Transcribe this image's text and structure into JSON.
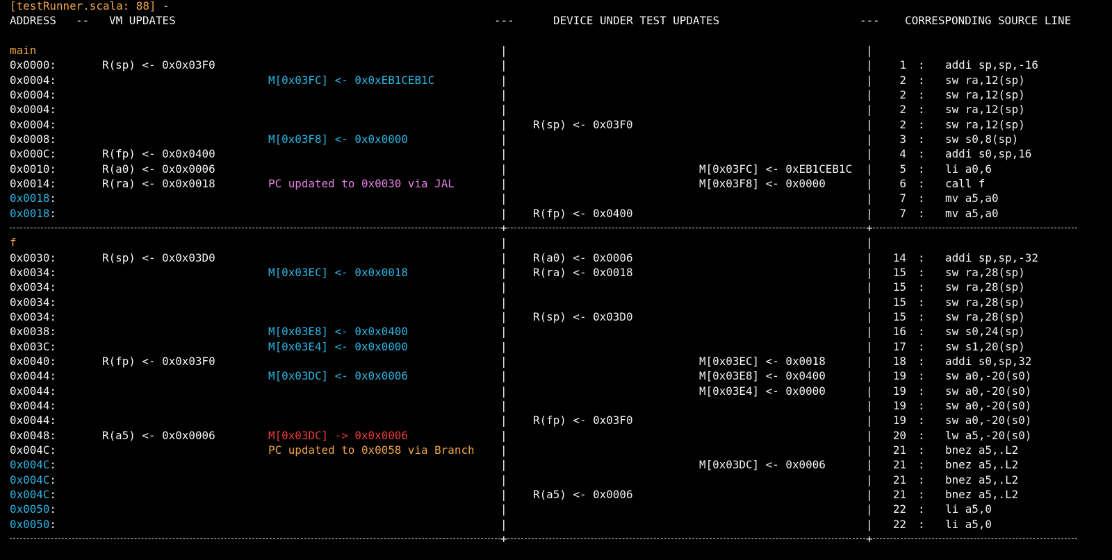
{
  "title": "[testRunner.scala: 88] -",
  "header": {
    "address": "ADDRESS",
    "sep1": "--",
    "vm": "VM UPDATES",
    "sep2": "---",
    "dut": "DEVICE UNDER TEST UPDATES",
    "sep3": "---",
    "source": "CORRESPONDING SOURCE LINE"
  },
  "colors": {
    "label": "#f0a54a",
    "memory_write": "#2bb6e6",
    "jal": "#e87fe6",
    "memory_read": "#f03a3a",
    "branch": "#f0a54a",
    "repeat_address": "#2bb6e6"
  },
  "sections": [
    {
      "label": "main",
      "rows": [
        {
          "addr": "0x0000",
          "vm_reg": "R(sp) <- 0x0x03F0",
          "line": "1",
          "src": "addi sp,sp,-16"
        },
        {
          "addr": "0x0004",
          "vm_mem": "M[0x03FC] <- 0x0xEB1CEB1C",
          "vm_mem_color": "cyan",
          "line": "2",
          "src": "sw ra,12(sp)"
        },
        {
          "addr": "0x0004",
          "line": "2",
          "src": "sw ra,12(sp)"
        },
        {
          "addr": "0x0004",
          "line": "2",
          "src": "sw ra,12(sp)"
        },
        {
          "addr": "0x0004",
          "dut_reg": "R(sp) <- 0x03F0",
          "line": "2",
          "src": "sw ra,12(sp)"
        },
        {
          "addr": "0x0008",
          "vm_mem": "M[0x03F8] <- 0x0x0000",
          "vm_mem_color": "cyan",
          "line": "3",
          "src": "sw s0,8(sp)"
        },
        {
          "addr": "0x000C",
          "vm_reg": "R(fp) <- 0x0x0400",
          "line": "4",
          "src": "addi s0,sp,16"
        },
        {
          "addr": "0x0010",
          "vm_reg": "R(a0) <- 0x0x0006",
          "dut_mem": "M[0x03FC] <- 0xEB1CEB1C",
          "line": "5",
          "src": "li a0,6"
        },
        {
          "addr": "0x0014",
          "vm_reg": "R(ra) <- 0x0x0018",
          "vm_mem": "PC updated to 0x0030 via JAL",
          "vm_mem_color": "magenta",
          "dut_mem": "M[0x03F8] <- 0x0000",
          "line": "6",
          "src": "call f"
        },
        {
          "addr": "0x0018",
          "addr_hl": true,
          "line": "7",
          "src": "mv a5,a0"
        },
        {
          "addr": "0x0018",
          "addr_hl": true,
          "dut_reg": "R(fp) <- 0x0400",
          "line": "7",
          "src": "mv a5,a0"
        }
      ]
    },
    {
      "label": "f",
      "rows": [
        {
          "addr": "0x0030",
          "vm_reg": "R(sp) <- 0x0x03D0",
          "dut_reg": "R(a0) <- 0x0006",
          "line": "14",
          "src": "addi sp,sp,-32"
        },
        {
          "addr": "0x0034",
          "vm_mem": "M[0x03EC] <- 0x0x0018",
          "vm_mem_color": "cyan",
          "dut_reg": "R(ra) <- 0x0018",
          "line": "15",
          "src": "sw ra,28(sp)"
        },
        {
          "addr": "0x0034",
          "line": "15",
          "src": "sw ra,28(sp)"
        },
        {
          "addr": "0x0034",
          "line": "15",
          "src": "sw ra,28(sp)"
        },
        {
          "addr": "0x0034",
          "dut_reg": "R(sp) <- 0x03D0",
          "line": "15",
          "src": "sw ra,28(sp)"
        },
        {
          "addr": "0x0038",
          "vm_mem": "M[0x03E8] <- 0x0x0400",
          "vm_mem_color": "cyan",
          "line": "16",
          "src": "sw s0,24(sp)"
        },
        {
          "addr": "0x003C",
          "vm_mem": "M[0x03E4] <- 0x0x0000",
          "vm_mem_color": "cyan",
          "line": "17",
          "src": "sw s1,20(sp)"
        },
        {
          "addr": "0x0040",
          "vm_reg": "R(fp) <- 0x0x03F0",
          "dut_mem": "M[0x03EC] <- 0x0018",
          "line": "18",
          "src": "addi s0,sp,32"
        },
        {
          "addr": "0x0044",
          "vm_mem": "M[0x03DC] <- 0x0x0006",
          "vm_mem_color": "cyan",
          "dut_mem": "M[0x03E8] <- 0x0400",
          "line": "19",
          "src": "sw a0,-20(s0)"
        },
        {
          "addr": "0x0044",
          "dut_mem": "M[0x03E4] <- 0x0000",
          "line": "19",
          "src": "sw a0,-20(s0)"
        },
        {
          "addr": "0x0044",
          "line": "19",
          "src": "sw a0,-20(s0)"
        },
        {
          "addr": "0x0044",
          "dut_reg": "R(fp) <- 0x03F0",
          "line": "19",
          "src": "sw a0,-20(s0)"
        },
        {
          "addr": "0x0048",
          "vm_reg": "R(a5) <- 0x0x0006",
          "vm_mem": "M[0x03DC] -> 0x0x0006",
          "vm_mem_color": "red",
          "line": "20",
          "src": "lw a5,-20(s0)"
        },
        {
          "addr": "0x004C",
          "vm_mem": "PC updated to 0x0058 via Branch",
          "vm_mem_color": "orange",
          "line": "21",
          "src": "bnez a5,.L2"
        },
        {
          "addr": "0x004C",
          "addr_hl": true,
          "dut_mem": "M[0x03DC] <- 0x0006",
          "line": "21",
          "src": "bnez a5,.L2"
        },
        {
          "addr": "0x004C",
          "addr_hl": true,
          "line": "21",
          "src": "bnez a5,.L2"
        },
        {
          "addr": "0x004C",
          "addr_hl": true,
          "dut_reg": "R(a5) <- 0x0006",
          "line": "21",
          "src": "bnez a5,.L2"
        },
        {
          "addr": "0x0050",
          "addr_hl": true,
          "line": "22",
          "src": "li a5,0"
        },
        {
          "addr": "0x0050",
          "addr_hl": true,
          "line": "22",
          "src": "li a5,0"
        }
      ]
    }
  ]
}
